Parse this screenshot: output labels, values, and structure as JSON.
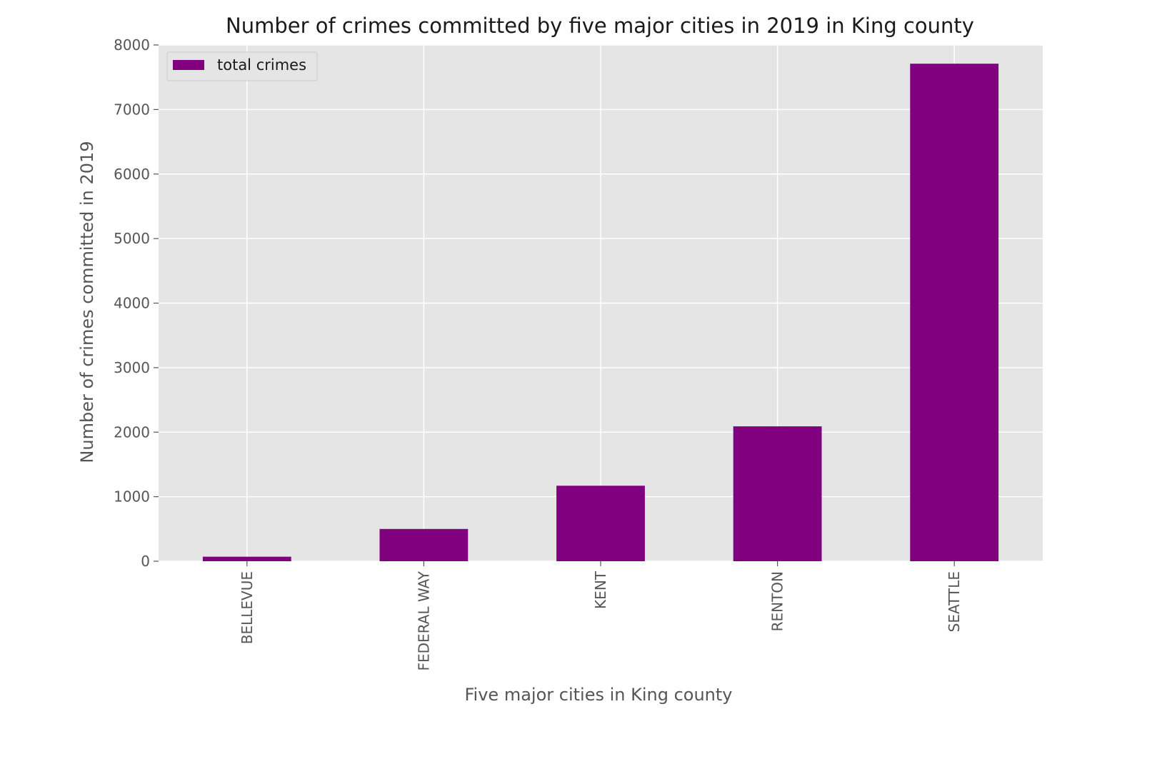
{
  "chart_data": {
    "type": "bar",
    "title": "Number of crimes committed by five major cities in 2019 in King county",
    "xlabel": "Five major cities in King county",
    "ylabel": "Number of crimes committed in 2019",
    "categories": [
      "BELLEVUE",
      "FEDERAL WAY",
      "KENT",
      "RENTON",
      "SEATTLE"
    ],
    "series": [
      {
        "name": "total crimes",
        "values": [
          70,
          500,
          1170,
          2090,
          7710
        ]
      }
    ],
    "ylim": [
      0,
      8000
    ],
    "yticks": [
      "0",
      "1000",
      "2000",
      "3000",
      "4000",
      "5000",
      "6000",
      "7000",
      "8000"
    ],
    "grid": true,
    "legend": "top-left",
    "colors": {
      "bar": "#800080",
      "plot_background": "#e5e5e5",
      "grid": "#ffffff"
    }
  }
}
